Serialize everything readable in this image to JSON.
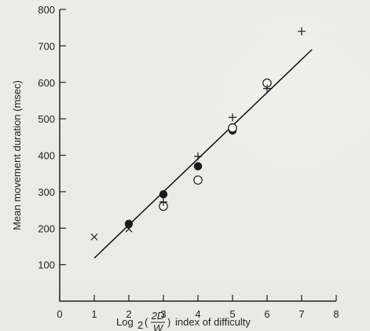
{
  "chart_data": {
    "type": "scatter",
    "title": "",
    "xlabel": {
      "prefix": "Log",
      "subscript": "2",
      "fraction_numerator": "2D",
      "fraction_denominator": "W",
      "suffix": " index of difficulty"
    },
    "ylabel": "Mean movement duration (msec)",
    "xlim": [
      0,
      8
    ],
    "ylim": [
      0,
      800
    ],
    "x_ticks": [
      "0",
      "1",
      "2",
      "3",
      "4",
      "5",
      "6",
      "7",
      "8"
    ],
    "y_ticks": [
      "100",
      "200",
      "300",
      "400",
      "500",
      "600",
      "700",
      "800"
    ],
    "grid": false,
    "legend": "none",
    "fit_line": {
      "x": [
        1,
        7.3
      ],
      "y": [
        118,
        690
      ]
    },
    "series": [
      {
        "marker": "filled-circle",
        "x": [
          2,
          3,
          4,
          5,
          6
        ],
        "y": [
          212,
          293,
          370,
          468,
          598
        ]
      },
      {
        "marker": "open-circle",
        "x": [
          3,
          4,
          5,
          6
        ],
        "y": [
          260,
          332,
          475,
          598
        ]
      },
      {
        "marker": "plus",
        "x": [
          3,
          4,
          5,
          6,
          7
        ],
        "y": [
          272,
          397,
          504,
          583,
          740
        ]
      },
      {
        "marker": "x",
        "x": [
          1,
          2
        ],
        "y": [
          176,
          198
        ]
      }
    ]
  },
  "colors": {
    "background": "#ebebe8",
    "axis": "#222222",
    "marker": "#1a1a1a"
  }
}
